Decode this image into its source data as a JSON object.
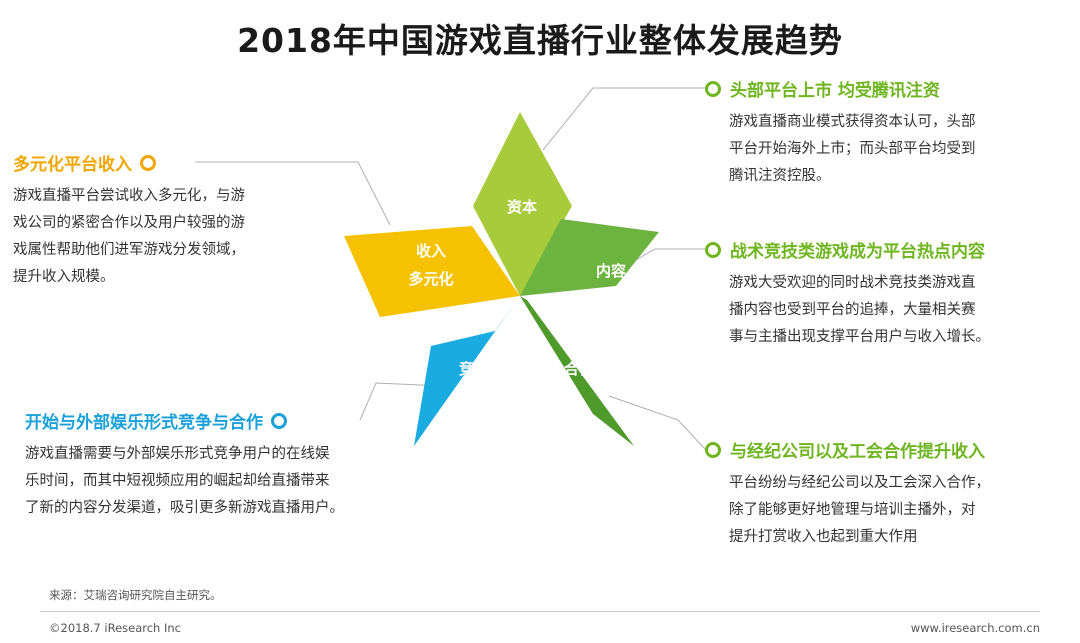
{
  "title": "2018年中国游戏直播行业整体发展趋势",
  "petals": {
    "capital": "资本",
    "content": "内容",
    "cooperation": "合作",
    "competition": "竞争",
    "revenue_line1": "收入",
    "revenue_line2": "多元化"
  },
  "colors": {
    "lime": "#a7cb3a",
    "green": "#6db33f",
    "dark_green": "#4e9a2a",
    "blue": "#1aabe0",
    "yellow": "#f6c200",
    "orange_heading": "#f0a500",
    "blue_heading": "#1aa1d9",
    "green_heading": "#6fb51f"
  },
  "trends": {
    "listing": {
      "heading": "头部平台上市 均受腾讯注资",
      "lines": [
        "游戏直播商业模式获得资本认可，头部",
        "平台开始海外上市；而头部平台均受到",
        "腾讯注资控股。"
      ]
    },
    "esports": {
      "heading": "战术竞技类游戏成为平台热点内容",
      "lines": [
        "游戏大受欢迎的同时战术竞技类游戏直",
        "播内容也受到平台的追捧，大量相关赛",
        "事与主播出现支撑平台用户与收入增长。"
      ]
    },
    "agency": {
      "heading": "与经纪公司以及工会合作提升收入",
      "lines": [
        "平台纷纷与经纪公司以及工会深入合作，",
        "除了能够更好地管理与培训主播外，对",
        "提升打赏收入也起到重大作用"
      ]
    },
    "diversify": {
      "heading": "多元化平台收入",
      "lines": [
        "游戏直播平台尝试收入多元化，与游",
        "戏公司的紧密合作以及用户较强的游",
        "戏属性帮助他们进军游戏分发领域，",
        "提升收入规模。"
      ]
    },
    "compete": {
      "heading": "开始与外部娱乐形式竞争与合作",
      "lines": [
        "游戏直播需要与外部娱乐形式竞争用户的在线娱",
        "乐时间，而其中短视频应用的崛起却给直播带来",
        "了新的内容分发渠道，吸引更多新游戏直播用户。"
      ]
    }
  },
  "source": "来源：艾瑞咨询研究院自主研究。",
  "footer_left": "©2018.7 iResearch Inc",
  "footer_right": "www.iresearch.com.cn"
}
